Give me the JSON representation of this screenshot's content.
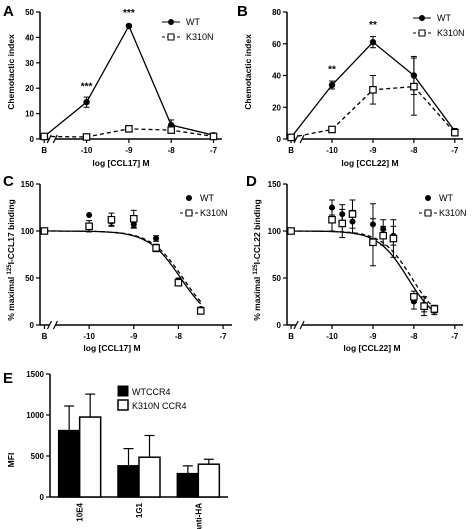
{
  "figure": {
    "panels": [
      {
        "id": "A",
        "letter": "A"
      },
      {
        "id": "B",
        "letter": "B"
      },
      {
        "id": "C",
        "letter": "C"
      },
      {
        "id": "D",
        "letter": "D"
      },
      {
        "id": "E",
        "letter": "E"
      }
    ]
  },
  "chart_data": [
    {
      "panel": "A",
      "type": "line",
      "xlabel": "log [CCL17] M",
      "ylabel": "Chemotactic index",
      "ylim": [
        0,
        50
      ],
      "yticks": [
        0,
        10,
        20,
        30,
        40,
        50
      ],
      "xticks": [
        {
          "v": -11,
          "label": "B"
        },
        {
          "v": -10,
          "label": "-10"
        },
        {
          "v": -9,
          "label": "-9"
        },
        {
          "v": -8,
          "label": "-8"
        },
        {
          "v": -7,
          "label": "-7"
        }
      ],
      "xlim": [
        -11.1,
        -6.8
      ],
      "axis_break": true,
      "legend": "top-right",
      "series": [
        {
          "name": "WT",
          "marker": "filled-circle",
          "line": "solid",
          "x": [
            -11,
            -10,
            -9,
            -8,
            -7
          ],
          "y": [
            1,
            14.5,
            44.5,
            5.5,
            1.5
          ],
          "err": [
            0,
            2,
            0.5,
            2,
            0.5
          ]
        },
        {
          "name": "K310N",
          "marker": "open-square",
          "line": "dashed",
          "x": [
            -11,
            -10,
            -9,
            -8,
            -7
          ],
          "y": [
            1,
            0.8,
            4,
            3.5,
            1
          ],
          "err": [
            0,
            0.4,
            0.4,
            0.5,
            0.3
          ]
        }
      ],
      "annotations": [
        {
          "x": -10,
          "y": 19.5,
          "text": "***"
        },
        {
          "x": -9,
          "y": 48.5,
          "text": "***"
        }
      ]
    },
    {
      "panel": "B",
      "type": "line",
      "xlabel": "log [CCL22] M",
      "ylabel": "Chemotactic index",
      "ylim": [
        0,
        80
      ],
      "yticks": [
        0,
        20,
        40,
        60,
        80
      ],
      "xticks": [
        {
          "v": -11,
          "label": "B"
        },
        {
          "v": -10,
          "label": "-10"
        },
        {
          "v": -9,
          "label": "-9"
        },
        {
          "v": -8,
          "label": "-8"
        },
        {
          "v": -7,
          "label": "-7"
        }
      ],
      "xlim": [
        -11.1,
        -6.8
      ],
      "axis_break": true,
      "legend": "top-right",
      "series": [
        {
          "name": "WT",
          "marker": "filled-circle",
          "line": "solid",
          "x": [
            -11,
            -10,
            -9,
            -8,
            -7
          ],
          "y": [
            1,
            34,
            61,
            40,
            5
          ],
          "err": [
            0,
            2.5,
            3.5,
            12,
            1.5
          ]
        },
        {
          "name": "K310N",
          "marker": "open-square",
          "line": "dashed",
          "x": [
            -11,
            -10,
            -9,
            -8,
            -7
          ],
          "y": [
            1,
            6,
            31,
            33,
            4
          ],
          "err": [
            0,
            1,
            9,
            18,
            1
          ]
        }
      ],
      "annotations": [
        {
          "x": -10,
          "y": 42,
          "text": "**"
        },
        {
          "x": -9,
          "y": 70,
          "text": "**"
        }
      ]
    },
    {
      "panel": "C",
      "type": "scatter",
      "xlabel": "log [CCL17] M",
      "ylabel": "% maximal 125I-CCL17 binding",
      "ylabel_parts": [
        "% maximal ",
        "125",
        "I-CCL17 binding"
      ],
      "ylim": [
        0,
        150
      ],
      "yticks": [
        0,
        50,
        100,
        150
      ],
      "xticks": [
        {
          "v": -11,
          "label": "B"
        },
        {
          "v": -10,
          "label": "-10"
        },
        {
          "v": -9,
          "label": "-9"
        },
        {
          "v": -8,
          "label": "-8"
        },
        {
          "v": -7,
          "label": "-7"
        }
      ],
      "xlim": [
        -11.1,
        -6.8
      ],
      "axis_break": true,
      "legend": "top-right",
      "series": [
        {
          "name": "WT",
          "marker": "filled-circle",
          "fit": "solid",
          "ic50": -7.95,
          "x": [
            -11,
            -10,
            -9.5,
            -9,
            -8.5,
            -8,
            -7.5
          ],
          "y": [
            100,
            117,
            110,
            107,
            92,
            47,
            17
          ],
          "err": [
            0,
            0,
            4,
            4,
            3,
            3,
            2
          ]
        },
        {
          "name": "K310N",
          "marker": "open-square",
          "fit": "dashed",
          "ic50": -7.9,
          "x": [
            -11,
            -10,
            -9.5,
            -9,
            -8.5,
            -8,
            -7.5
          ],
          "y": [
            100,
            105,
            112,
            113,
            82,
            45,
            15
          ],
          "err": [
            0,
            6,
            7,
            9,
            4,
            3,
            2
          ]
        }
      ]
    },
    {
      "panel": "D",
      "type": "scatter",
      "xlabel": "log [CCL22] M",
      "ylabel": "% maximal 125I-CCL22 binding",
      "ylabel_parts": [
        "% maximal ",
        "125",
        "I-CCL22 binding"
      ],
      "ylim": [
        0,
        150
      ],
      "yticks": [
        0,
        50,
        100,
        150
      ],
      "xticks": [
        {
          "v": -11,
          "label": "B"
        },
        {
          "v": -10,
          "label": "-10"
        },
        {
          "v": -9,
          "label": "-9"
        },
        {
          "v": -8,
          "label": "-8"
        },
        {
          "v": -7,
          "label": "-7"
        }
      ],
      "xlim": [
        -11.1,
        -6.8
      ],
      "axis_break": true,
      "legend": "top-right",
      "series": [
        {
          "name": "WT",
          "marker": "filled-circle",
          "fit": "solid",
          "ic50": -8.15,
          "x": [
            -11,
            -10,
            -9.75,
            -9.5,
            -9,
            -8.75,
            -8.5,
            -8,
            -7.75,
            -7.5
          ],
          "y": [
            100,
            125,
            118,
            110,
            107,
            102,
            95,
            25,
            22,
            15
          ],
          "err": [
            0,
            8,
            10,
            12,
            22,
            10,
            10,
            8,
            8,
            4
          ]
        },
        {
          "name": "K310N",
          "marker": "open-square",
          "fit": "dashed",
          "ic50": -8.05,
          "x": [
            -11,
            -10,
            -9.75,
            -9.5,
            -9,
            -8.75,
            -8.5,
            -8,
            -7.75,
            -7.5
          ],
          "y": [
            100,
            112,
            108,
            118,
            88,
            95,
            92,
            30,
            20,
            17
          ],
          "err": [
            0,
            12,
            15,
            15,
            25,
            10,
            20,
            6,
            10,
            4
          ]
        }
      ]
    },
    {
      "panel": "E",
      "type": "bar",
      "ylabel": "MFI",
      "ylim": [
        0,
        1500
      ],
      "yticks": [
        0,
        500,
        1000,
        1500
      ],
      "categories": [
        "10E4",
        "1G1",
        "anti-HA"
      ],
      "legend": "top-left",
      "series": [
        {
          "name": "WTCCR4",
          "fill": "#000000",
          "values": [
            810,
            380,
            285
          ],
          "err": [
            300,
            210,
            95
          ]
        },
        {
          "name": "K310N CCR4",
          "fill": "#ffffff",
          "values": [
            975,
            485,
            400
          ],
          "err": [
            280,
            265,
            60
          ]
        }
      ]
    }
  ]
}
